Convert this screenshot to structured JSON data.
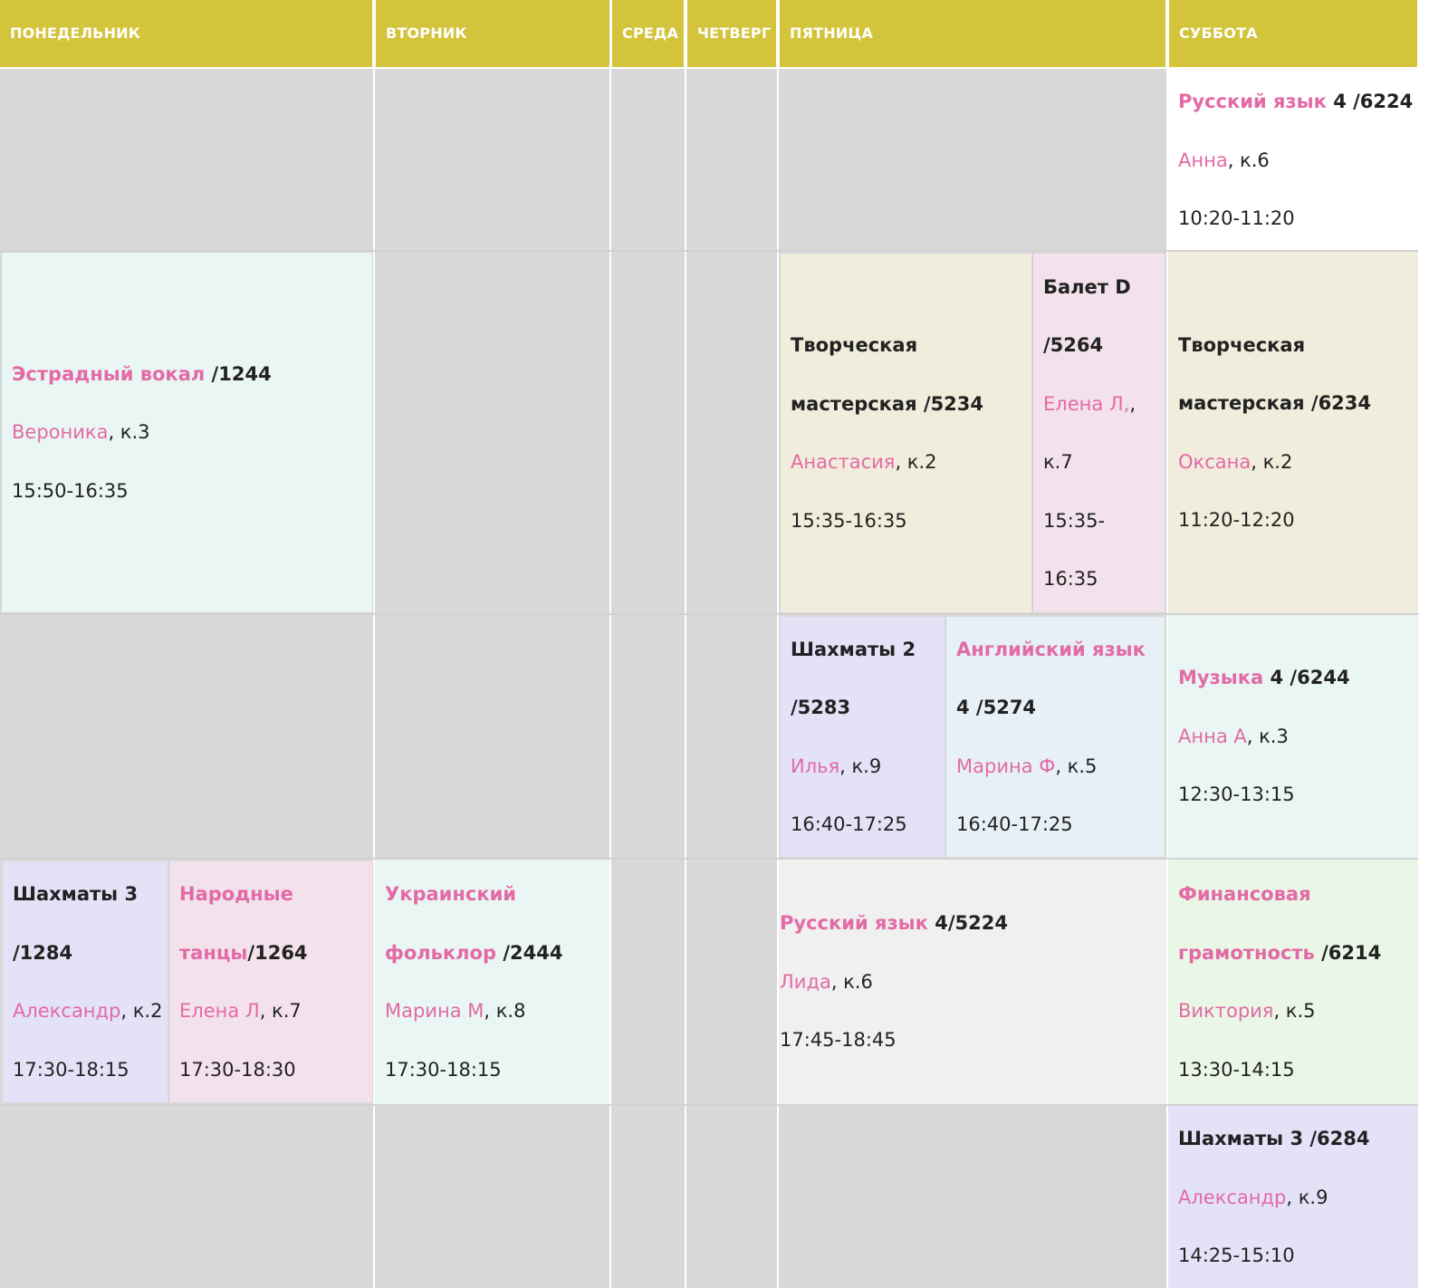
{
  "days": [
    "ПОНЕДЕЛЬНИК",
    "ВТОРНИК",
    "СРЕДА",
    "ЧЕТВЕРГ",
    "ПЯТНИЦА",
    "СУББОТА"
  ],
  "lessons": {
    "sat_ru": {
      "subject": "Русский язык",
      "code": " 4 /6224",
      "teacher": "Анна",
      "room": ", к.6",
      "time": "10:20-11:20"
    },
    "mon_vocal": {
      "subject": "Эстрадный вокал",
      "code": " /1244",
      "teacher": "Вероника",
      "room": ", к.3",
      "time": "15:50-16:35"
    },
    "fri_art": {
      "title_line1": "Творческая",
      "title_line2": "мастерская /5234",
      "teacher": "Анастасия",
      "room": ", к.2",
      "time": "15:35-16:35"
    },
    "fri_ballet": {
      "title_line1": "Балет D",
      "title_line2": "/5264",
      "teacher": "Елена Л,",
      "room_line1": ",",
      "room_line2": "к.7",
      "time_line1": "15:35-",
      "time_line2": "16:35"
    },
    "sat_art": {
      "title_line1": "Творческая",
      "title_line2": "мастерская /6234",
      "teacher": "Оксана",
      "room": ", к.2",
      "time": "11:20-12:20"
    },
    "fri_chess": {
      "title_line1": "Шахматы 2",
      "title_line2": "/5283",
      "teacher": "Илья",
      "room": ", к.9",
      "time": "16:40-17:25"
    },
    "fri_eng": {
      "subject": "Английский язык",
      "code_line": "4 /5274",
      "teacher": "Марина Ф",
      "room": ", к.5",
      "time": "16:40-17:25"
    },
    "sat_music": {
      "subject": "Музыка",
      "code": " 4 /6244",
      "teacher": "Анна А",
      "room": ", к.3",
      "time": "12:30-13:15"
    },
    "mon_chess": {
      "title_line1": "Шахматы 3",
      "title_line2": "/1284",
      "teacher": "Александр",
      "room": ", к.2",
      "time": "17:30-18:15"
    },
    "mon_folk": {
      "subject_line1": "Народные",
      "subject_line2": "танцы",
      "code": "/1264",
      "teacher": "Елена Л",
      "room": ", к.7",
      "time": "17:30-18:30"
    },
    "tue_ukr": {
      "subject_line1": "Украинский",
      "subject_line2": "фольклор",
      "code": " /2444",
      "teacher": "Марина М",
      "room": ", к.8",
      "time": "17:30-18:15"
    },
    "fri_ru": {
      "subject": "Русский язык",
      "code": " 4/5224",
      "teacher": "Лида",
      "room": ", к.6",
      "time": "17:45-18:45"
    },
    "sat_fin": {
      "subject_line1": "Финансовая",
      "subject_line2": "грамотность",
      "code": " /6214",
      "teacher": "Виктория",
      "room": ", к.5",
      "time": "13:30-14:15"
    },
    "sat_chess": {
      "title": "Шахматы 3 /6284",
      "teacher": "Александр",
      "room": ", к.9",
      "time": "14:25-15:10"
    }
  },
  "colors": {
    "header": "#d4c43c",
    "empty": "#d8d8d8",
    "accent": "#e36aa6",
    "mint": "#eaf6f3",
    "beige": "#f0eddc",
    "rose": "#f3e2ec",
    "lavender": "#e4e2f7",
    "lightblue": "#e6f0f6",
    "grey": "#f0f0f0",
    "green": "#eaf6e6"
  }
}
